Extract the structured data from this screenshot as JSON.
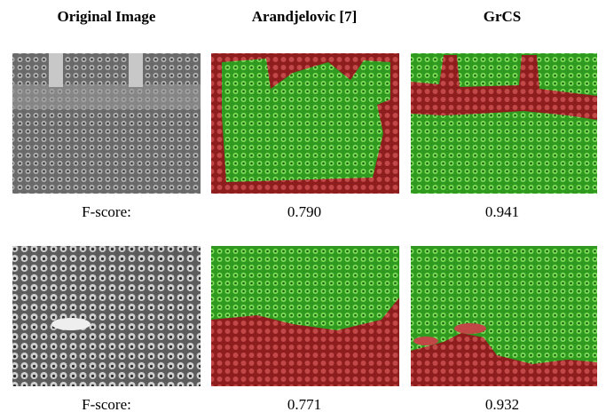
{
  "headers": [
    "Original Image",
    "Arandjelovic [7]",
    "GrCS"
  ],
  "rows": [
    {
      "label": "F-score:",
      "scores": [
        "0.790",
        "0.941"
      ]
    },
    {
      "label": "F-score:",
      "scores": [
        "0.771",
        "0.932"
      ]
    }
  ]
}
